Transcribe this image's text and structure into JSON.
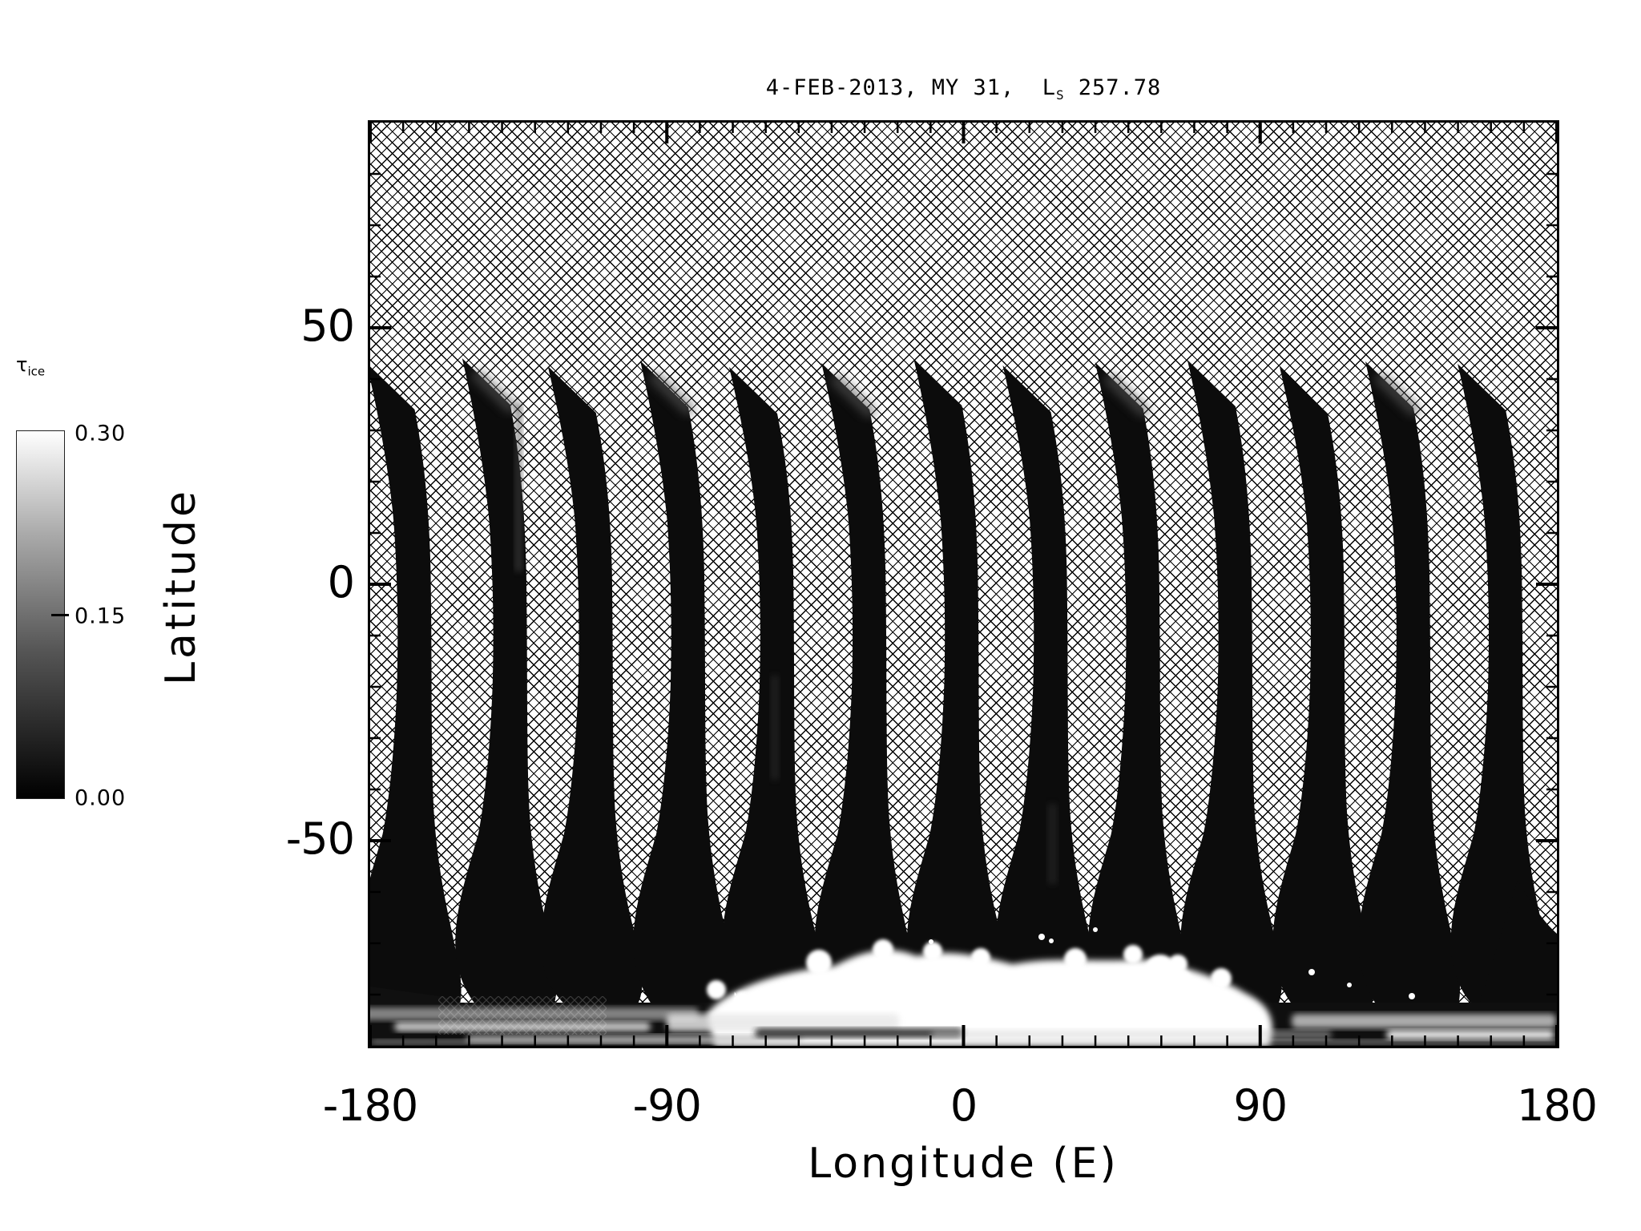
{
  "ui": {
    "title": {
      "prefix": "4-FEB-2013, MY 31,  L",
      "subscript": "S",
      "suffix": " 257.78"
    },
    "xaxis": {
      "label": "Longitude (E)",
      "ticks": [
        "-180",
        "-90",
        "0",
        "90",
        "180"
      ]
    },
    "yaxis": {
      "label": "Latitude",
      "ticks": [
        "50",
        "0",
        "-50"
      ]
    },
    "colorbar": {
      "symbol": "τ",
      "symbol_sub": "ice",
      "ticks": [
        "0.30",
        "0.15",
        "0.00"
      ]
    }
  },
  "chart_data": {
    "type": "heatmap",
    "title": "4-FEB-2013, MY 31, Ls 257.78",
    "variable": "tau_ice (water-ice optical depth)",
    "xlabel": "Longitude (E)",
    "ylabel": "Latitude",
    "xlim": [
      -180,
      180
    ],
    "ylim": [
      -90,
      90
    ],
    "x_major_ticks": [
      -180,
      -90,
      0,
      90,
      180
    ],
    "x_minor_step": 10,
    "y_major_ticks": [
      50,
      0,
      -50
    ],
    "y_minor_step": 10,
    "colorbar": {
      "label": "tau_ice",
      "min": 0.0,
      "mid": 0.15,
      "max": 0.3,
      "colormap": "grayscale black-to-white"
    },
    "background": "cross-hatched region = no data",
    "orbit_tracks": {
      "count": 13,
      "equator_longitudes_east": [
        -167,
        -138,
        -112,
        -84,
        -57,
        -29,
        -1,
        26,
        54,
        82,
        110,
        136,
        164
      ],
      "lat_coverage": [
        -75,
        45
      ],
      "typical_value": 0.0,
      "description": "dark near-vertical orbit swaths (tau~0), pointed tips near lat 45, widening and curving west south of lat -45"
    },
    "south_polar_cloud": {
      "lon_range": [
        -80,
        95
      ],
      "lat_range": [
        -86,
        -72
      ],
      "value": 0.3,
      "description": "bright saturated white region with fuzzy cloud-like edges"
    },
    "polar_edge_band": {
      "lat_range": [
        -90,
        -82
      ],
      "lon_range": [
        -180,
        180
      ],
      "values": "streaky gray 0.05-0.25"
    },
    "notes": "faint gray smudges (tau ~0.05-0.1) near several swath tips at lat 35-45"
  }
}
